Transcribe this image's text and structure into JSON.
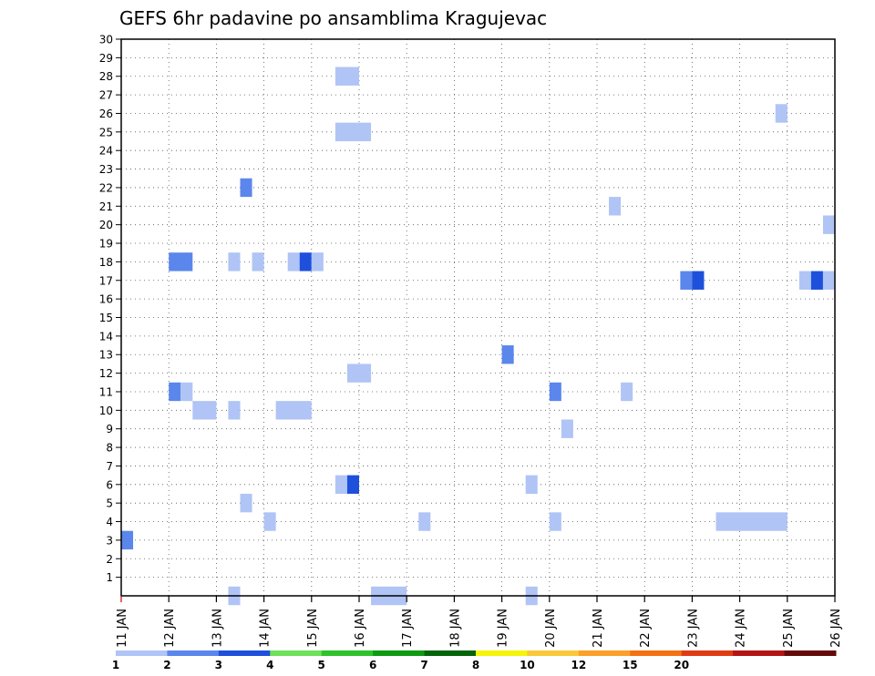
{
  "chart_data": {
    "type": "heatmap",
    "title": "GEFS 6hr padavine po ansamblima Kragujevac",
    "x_tick_labels": [
      "11 JAN",
      "12 JAN",
      "13 JAN",
      "14 JAN",
      "15 JAN",
      "16 JAN",
      "17 JAN",
      "18 JAN",
      "19 JAN",
      "20 JAN",
      "21 JAN",
      "22 JAN",
      "23 JAN",
      "24 JAN",
      "25 JAN",
      "26 JAN"
    ],
    "x_range_days": [
      11,
      26
    ],
    "y_tick_labels": [
      "1",
      "2",
      "3",
      "4",
      "5",
      "6",
      "7",
      "8",
      "9",
      "10",
      "11",
      "12",
      "13",
      "14",
      "15",
      "16",
      "17",
      "18",
      "19",
      "20",
      "21",
      "22",
      "23",
      "24",
      "25",
      "26",
      "27",
      "28",
      "29",
      "30"
    ],
    "y_range": [
      0,
      30
    ],
    "grid": true,
    "colorbar": {
      "labels": [
        "1",
        "2",
        "3",
        "4",
        "5",
        "6",
        "7",
        "8",
        "10",
        "12",
        "15",
        "20"
      ],
      "colors": [
        "#b0c4f5",
        "#5b86ec",
        "#1e50dc",
        "#6ee15a",
        "#2ec32a",
        "#0f9a12",
        "#05640a",
        "#f5f50a",
        "#fac83a",
        "#fca02a",
        "#f57214",
        "#e03c14",
        "#b41414",
        "#640a0a"
      ]
    },
    "cells": [
      {
        "member": 0,
        "day": 13.25,
        "days": 0.25,
        "level": 1
      },
      {
        "member": 0,
        "day": 16.25,
        "days": 0.75,
        "level": 1
      },
      {
        "member": 0,
        "day": 19.5,
        "days": 0.25,
        "level": 1
      },
      {
        "member": 3,
        "day": 11.0,
        "days": 0.25,
        "level": 2
      },
      {
        "member": 4,
        "day": 14.0,
        "days": 0.25,
        "level": 1
      },
      {
        "member": 4,
        "day": 17.25,
        "days": 0.25,
        "level": 1
      },
      {
        "member": 4,
        "day": 20.0,
        "days": 0.25,
        "level": 1
      },
      {
        "member": 4,
        "day": 23.5,
        "days": 1.5,
        "level": 1
      },
      {
        "member": 5,
        "day": 13.5,
        "days": 0.25,
        "level": 1
      },
      {
        "member": 6,
        "day": 15.5,
        "days": 0.25,
        "level": 1
      },
      {
        "member": 6,
        "day": 15.75,
        "days": 0.25,
        "level": 3
      },
      {
        "member": 6,
        "day": 19.5,
        "days": 0.25,
        "level": 1
      },
      {
        "member": 9,
        "day": 20.25,
        "days": 0.25,
        "level": 1
      },
      {
        "member": 10,
        "day": 12.5,
        "days": 0.5,
        "level": 1
      },
      {
        "member": 10,
        "day": 13.25,
        "days": 0.25,
        "level": 1
      },
      {
        "member": 10,
        "day": 14.25,
        "days": 0.75,
        "level": 1
      },
      {
        "member": 11,
        "day": 12.0,
        "days": 0.25,
        "level": 2
      },
      {
        "member": 11,
        "day": 12.25,
        "days": 0.25,
        "level": 1
      },
      {
        "member": 11,
        "day": 20.0,
        "days": 0.25,
        "level": 2
      },
      {
        "member": 11,
        "day": 21.5,
        "days": 0.25,
        "level": 1
      },
      {
        "member": 12,
        "day": 15.75,
        "days": 0.5,
        "level": 1
      },
      {
        "member": 13,
        "day": 19.0,
        "days": 0.25,
        "level": 2
      },
      {
        "member": 17,
        "day": 22.75,
        "days": 0.25,
        "level": 2
      },
      {
        "member": 17,
        "day": 23.0,
        "days": 0.25,
        "level": 3
      },
      {
        "member": 17,
        "day": 25.25,
        "days": 0.25,
        "level": 1
      },
      {
        "member": 17,
        "day": 25.5,
        "days": 0.25,
        "level": 3
      },
      {
        "member": 17,
        "day": 25.75,
        "days": 0.25,
        "level": 1
      },
      {
        "member": 18,
        "day": 12.0,
        "days": 0.5,
        "level": 2
      },
      {
        "member": 18,
        "day": 13.25,
        "days": 0.25,
        "level": 1
      },
      {
        "member": 18,
        "day": 13.75,
        "days": 0.25,
        "level": 1
      },
      {
        "member": 18,
        "day": 14.5,
        "days": 0.25,
        "level": 1
      },
      {
        "member": 18,
        "day": 14.75,
        "days": 0.25,
        "level": 3
      },
      {
        "member": 18,
        "day": 15.0,
        "days": 0.25,
        "level": 1
      },
      {
        "member": 20,
        "day": 25.75,
        "days": 0.25,
        "level": 1
      },
      {
        "member": 21,
        "day": 21.25,
        "days": 0.25,
        "level": 1
      },
      {
        "member": 22,
        "day": 13.5,
        "days": 0.25,
        "level": 2
      },
      {
        "member": 25,
        "day": 15.5,
        "days": 0.75,
        "level": 1
      },
      {
        "member": 26,
        "day": 24.75,
        "days": 0.25,
        "level": 1
      },
      {
        "member": 28,
        "day": 15.5,
        "days": 0.5,
        "level": 1
      }
    ]
  }
}
